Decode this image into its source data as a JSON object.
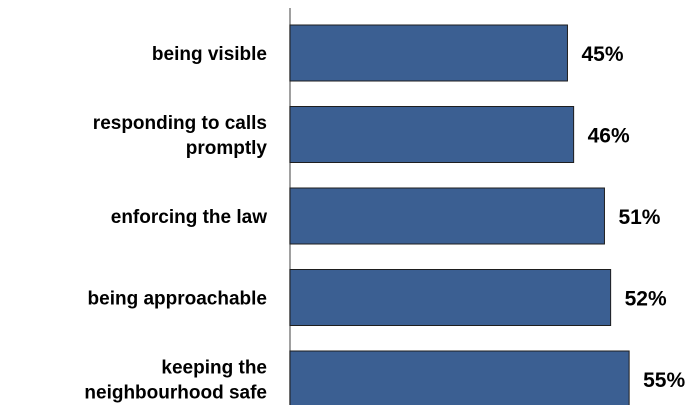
{
  "chart_data": {
    "type": "bar",
    "orientation": "horizontal",
    "categories": [
      [
        "being visible"
      ],
      [
        "responding to calls",
        "promptly"
      ],
      [
        "enforcing the law"
      ],
      [
        "being approachable"
      ],
      [
        "keeping the",
        "neighbourhood safe"
      ]
    ],
    "values": [
      45,
      46,
      51,
      52,
      55
    ],
    "value_labels": [
      "45%",
      "46%",
      "51%",
      "52%",
      "55%"
    ],
    "xlim": [
      0,
      100
    ],
    "grid": false,
    "legend": "none",
    "bar_color": "#3B5F92",
    "bar_edge_color": "#1E1E1E",
    "axis_color": "#808080"
  }
}
